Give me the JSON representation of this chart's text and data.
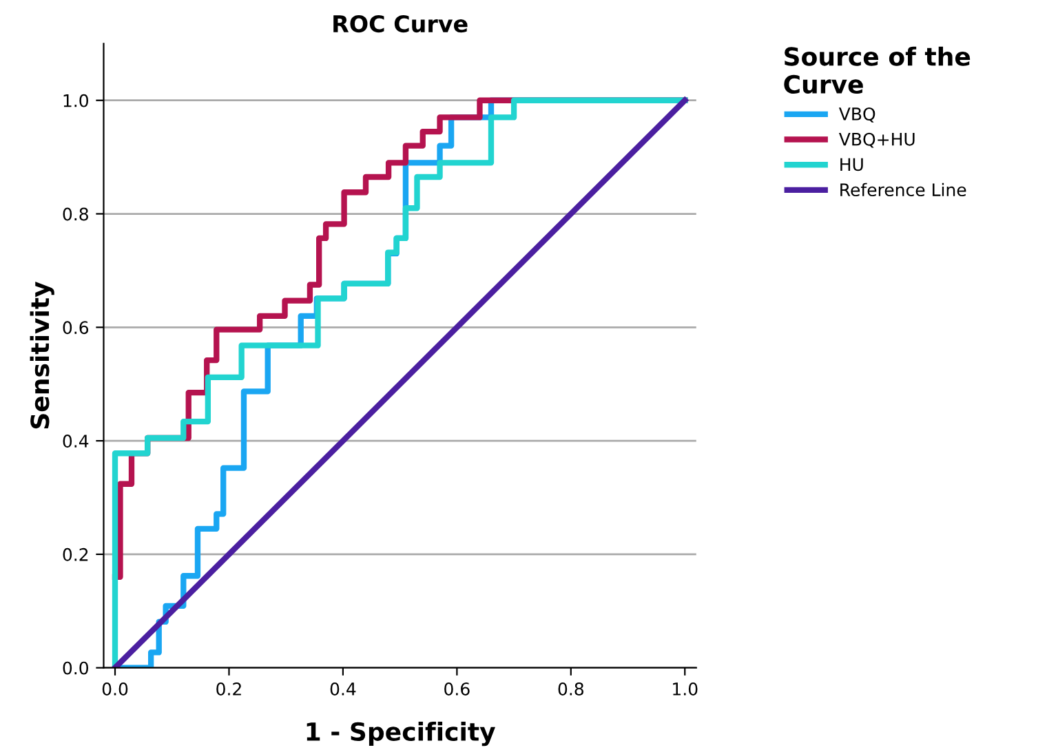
{
  "chart_data": {
    "type": "line",
    "title": "ROC Curve",
    "xlabel": "1 - Specificity",
    "ylabel": "Sensitivity",
    "legend_title": "Source of the Curve",
    "series": [
      {
        "name": "VBQ",
        "color": "#1aa6f2",
        "x": [
          0,
          0.063,
          0.063,
          0.077,
          0.077,
          0.089,
          0.089,
          0.12,
          0.12,
          0.145,
          0.145,
          0.178,
          0.178,
          0.19,
          0.19,
          0.226,
          0.226,
          0.268,
          0.268,
          0.326,
          0.326,
          0.354,
          0.354,
          0.402,
          0.402,
          0.479,
          0.479,
          0.494,
          0.494,
          0.51,
          0.51,
          0.57,
          0.57,
          0.59,
          0.59,
          0.66,
          0.66,
          1.0
        ],
        "values": [
          0,
          0,
          0.027,
          0.027,
          0.081,
          0.081,
          0.109,
          0.109,
          0.162,
          0.162,
          0.245,
          0.245,
          0.271,
          0.271,
          0.352,
          0.352,
          0.487,
          0.487,
          0.568,
          0.568,
          0.62,
          0.62,
          0.651,
          0.651,
          0.677,
          0.677,
          0.73,
          0.73,
          0.757,
          0.757,
          0.89,
          0.89,
          0.92,
          0.92,
          0.97,
          0.97,
          1.0,
          1.0
        ]
      },
      {
        "name": "VBQ+HU",
        "color": "#b5134f",
        "x": [
          0,
          0.009,
          0.009,
          0.029,
          0.029,
          0.057,
          0.057,
          0.129,
          0.129,
          0.161,
          0.161,
          0.178,
          0.178,
          0.254,
          0.254,
          0.298,
          0.298,
          0.342,
          0.342,
          0.358,
          0.358,
          0.37,
          0.37,
          0.402,
          0.402,
          0.44,
          0.44,
          0.48,
          0.48,
          0.51,
          0.51,
          0.54,
          0.54,
          0.57,
          0.57,
          0.64,
          0.64,
          0.7,
          1.0
        ],
        "values": [
          0.16,
          0.16,
          0.324,
          0.324,
          0.378,
          0.378,
          0.405,
          0.405,
          0.485,
          0.485,
          0.542,
          0.542,
          0.596,
          0.596,
          0.62,
          0.62,
          0.647,
          0.647,
          0.675,
          0.675,
          0.757,
          0.757,
          0.782,
          0.782,
          0.838,
          0.838,
          0.865,
          0.865,
          0.89,
          0.89,
          0.92,
          0.92,
          0.945,
          0.945,
          0.97,
          0.97,
          1.0,
          1.0,
          1.0
        ]
      },
      {
        "name": "HU",
        "color": "#22d4d0",
        "x": [
          0,
          0,
          0.057,
          0.057,
          0.12,
          0.12,
          0.163,
          0.163,
          0.222,
          0.222,
          0.356,
          0.356,
          0.402,
          0.402,
          0.479,
          0.479,
          0.494,
          0.494,
          0.51,
          0.51,
          0.53,
          0.53,
          0.57,
          0.57,
          0.66,
          0.66,
          0.7,
          0.7,
          1.0
        ],
        "values": [
          0,
          0.378,
          0.378,
          0.405,
          0.405,
          0.434,
          0.434,
          0.512,
          0.512,
          0.568,
          0.568,
          0.651,
          0.651,
          0.677,
          0.677,
          0.732,
          0.732,
          0.757,
          0.757,
          0.81,
          0.81,
          0.865,
          0.865,
          0.89,
          0.89,
          0.97,
          0.97,
          1.0,
          1.0
        ]
      },
      {
        "name": "Reference Line",
        "color": "#4b1fa0",
        "x": [
          0,
          1
        ],
        "values": [
          0,
          1
        ]
      }
    ],
    "xlim": [
      -0.02,
      1.02
    ],
    "ylim": [
      0,
      1.1
    ],
    "xticks": [
      {
        "value": 0,
        "label": "0.0"
      },
      0.2,
      0.4,
      0.6,
      0.8,
      {
        "value": 1,
        "label": "1.0"
      }
    ],
    "yticks": [
      {
        "value": 0,
        "label": "0.0"
      },
      0.2,
      0.4,
      0.6,
      0.8,
      {
        "value": 1,
        "label": "1.0"
      }
    ],
    "grid": "y",
    "legend": "top right",
    "line_style": "solid"
  }
}
